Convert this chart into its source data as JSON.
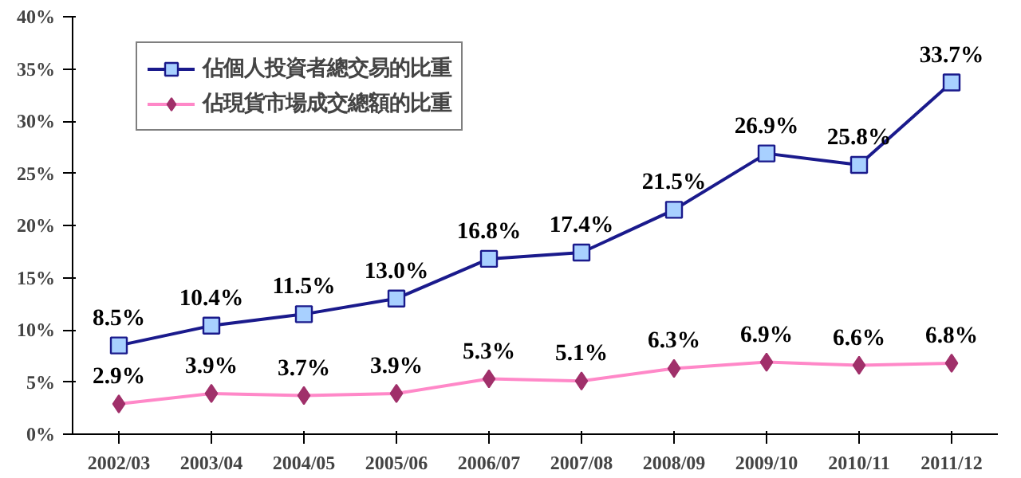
{
  "chart_data": {
    "type": "line",
    "categories": [
      "2002/03",
      "2003/04",
      "2004/05",
      "2005/06",
      "2006/07",
      "2007/08",
      "2008/09",
      "2009/10",
      "2010/11",
      "2011/12"
    ],
    "series": [
      {
        "name": "佔個人投資者總交易的比重",
        "color": "#1a1a8c",
        "marker": "square",
        "values": [
          8.5,
          10.4,
          11.5,
          13.0,
          16.8,
          17.4,
          21.5,
          26.9,
          25.8,
          33.7
        ],
        "value_labels": [
          "8.5%",
          "10.4%",
          "11.5%",
          "13.0%",
          "16.8%",
          "17.4%",
          "21.5%",
          "26.9%",
          "25.8%",
          "33.7%"
        ]
      },
      {
        "name": "佔現貨市場成交總額的比重",
        "color": "#ff88c8",
        "marker": "diamond",
        "values": [
          2.9,
          3.9,
          3.7,
          3.9,
          5.3,
          5.1,
          6.3,
          6.9,
          6.6,
          6.8
        ],
        "value_labels": [
          "2.9%",
          "3.9%",
          "3.7%",
          "3.9%",
          "5.3%",
          "5.1%",
          "6.3%",
          "6.9%",
          "6.6%",
          "6.8%"
        ]
      }
    ],
    "ylim": [
      0,
      40
    ],
    "yticks": [
      {
        "value": 0,
        "label": "0%"
      },
      {
        "value": 5,
        "label": "5%"
      },
      {
        "value": 10,
        "label": "10%"
      },
      {
        "value": 15,
        "label": "15%"
      },
      {
        "value": 20,
        "label": "20%"
      },
      {
        "value": 25,
        "label": "25%"
      },
      {
        "value": 30,
        "label": "30%"
      },
      {
        "value": 35,
        "label": "35%"
      },
      {
        "value": 40,
        "label": "40%"
      }
    ],
    "grid": false,
    "legend": "top left"
  }
}
